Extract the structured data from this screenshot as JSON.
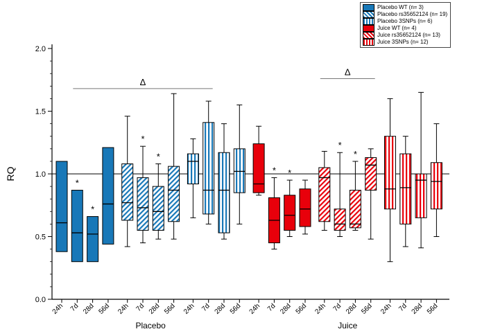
{
  "chart_data": {
    "type": "box",
    "title": "",
    "ylabel": "RQ",
    "ylim": [
      0.0,
      2.0
    ],
    "yticks": [
      "0.0",
      "0.5",
      "1.0",
      "1.5",
      "2.0"
    ],
    "y_minor_step": 0.1,
    "reference_line": 1.0,
    "significance_marker": "*",
    "timepoints": [
      "24h",
      "7d",
      "28d",
      "56d"
    ],
    "groups": [
      {
        "label": "Placebo",
        "series_indices": [
          0,
          1,
          2
        ]
      },
      {
        "label": "Juice",
        "series_indices": [
          3,
          4,
          5
        ]
      }
    ],
    "colors": {
      "placebo": "#1878B8",
      "juice": "#E8000B"
    },
    "series": [
      {
        "name": "Placebo WT (n= 3)",
        "color": "#1878B8",
        "fill": "solid",
        "boxes": [
          {
            "t": "24h",
            "lo": 0.38,
            "q1": 0.38,
            "med": 0.61,
            "q3": 1.1,
            "hi": 1.1,
            "star": false
          },
          {
            "t": "7d",
            "lo": 0.3,
            "q1": 0.3,
            "med": 0.53,
            "q3": 0.87,
            "hi": 0.87,
            "star": true
          },
          {
            "t": "28d",
            "lo": 0.3,
            "q1": 0.3,
            "med": 0.52,
            "q3": 0.66,
            "hi": 0.66,
            "star": true
          },
          {
            "t": "56d",
            "lo": 0.44,
            "q1": 0.44,
            "med": 0.76,
            "q3": 1.21,
            "hi": 1.21,
            "star": false
          }
        ]
      },
      {
        "name": "Placebo rs35652124 (n= 19)",
        "color": "#1878B8",
        "fill": "diagonal",
        "boxes": [
          {
            "t": "24h",
            "lo": 0.42,
            "q1": 0.63,
            "med": 0.77,
            "q3": 1.08,
            "hi": 1.46,
            "star": false
          },
          {
            "t": "7d",
            "lo": 0.45,
            "q1": 0.55,
            "med": 0.73,
            "q3": 0.97,
            "hi": 1.22,
            "star": true
          },
          {
            "t": "28d",
            "lo": 0.48,
            "q1": 0.55,
            "med": 0.7,
            "q3": 0.9,
            "hi": 1.08,
            "star": true
          },
          {
            "t": "56d",
            "lo": 0.48,
            "q1": 0.62,
            "med": 0.87,
            "q3": 1.06,
            "hi": 1.64,
            "star": false
          }
        ]
      },
      {
        "name": "Placebo 3SNPs (n= 6)",
        "color": "#1878B8",
        "fill": "vertical",
        "boxes": [
          {
            "t": "24h",
            "lo": 0.65,
            "q1": 0.92,
            "med": 1.1,
            "q3": 1.16,
            "hi": 1.28,
            "star": false
          },
          {
            "t": "7d",
            "lo": 0.6,
            "q1": 0.68,
            "med": 0.87,
            "q3": 1.41,
            "hi": 1.58,
            "star": false
          },
          {
            "t": "28d",
            "lo": 0.48,
            "q1": 0.53,
            "med": 0.87,
            "q3": 1.17,
            "hi": 1.4,
            "star": false
          },
          {
            "t": "56d",
            "lo": 0.6,
            "q1": 0.85,
            "med": 1.02,
            "q3": 1.2,
            "hi": 1.55,
            "star": false
          }
        ]
      },
      {
        "name": "Juice WT (n= 4)",
        "color": "#E8000B",
        "fill": "solid",
        "boxes": [
          {
            "t": "24h",
            "lo": 0.83,
            "q1": 0.85,
            "med": 0.92,
            "q3": 1.24,
            "hi": 1.38,
            "star": false
          },
          {
            "t": "7d",
            "lo": 0.4,
            "q1": 0.45,
            "med": 0.63,
            "q3": 0.81,
            "hi": 0.97,
            "star": true
          },
          {
            "t": "28d",
            "lo": 0.5,
            "q1": 0.55,
            "med": 0.67,
            "q3": 0.83,
            "hi": 0.95,
            "star": true
          },
          {
            "t": "56d",
            "lo": 0.52,
            "q1": 0.58,
            "med": 0.72,
            "q3": 0.88,
            "hi": 0.95,
            "star": false
          }
        ]
      },
      {
        "name": "Juice rs35652124 (n= 13)",
        "color": "#E8000B",
        "fill": "diagonal",
        "boxes": [
          {
            "t": "24h",
            "lo": 0.55,
            "q1": 0.62,
            "med": 0.97,
            "q3": 1.05,
            "hi": 1.18,
            "star": false
          },
          {
            "t": "7d",
            "lo": 0.5,
            "q1": 0.55,
            "med": 0.6,
            "q3": 0.72,
            "hi": 1.17,
            "star": true
          },
          {
            "t": "28d",
            "lo": 0.55,
            "q1": 0.57,
            "med": 0.6,
            "q3": 0.87,
            "hi": 1.1,
            "star": true
          },
          {
            "t": "56d",
            "lo": 0.48,
            "q1": 0.87,
            "med": 1.07,
            "q3": 1.13,
            "hi": 1.2,
            "star": false
          }
        ]
      },
      {
        "name": "Juice 3SNPs (n= 12)",
        "color": "#E8000B",
        "fill": "vertical",
        "boxes": [
          {
            "t": "24h",
            "lo": 0.3,
            "q1": 0.72,
            "med": 0.88,
            "q3": 1.3,
            "hi": 1.6,
            "star": false
          },
          {
            "t": "7d",
            "lo": 0.42,
            "q1": 0.6,
            "med": 0.89,
            "q3": 1.16,
            "hi": 1.3,
            "star": false
          },
          {
            "t": "28d",
            "lo": 0.41,
            "q1": 0.65,
            "med": 0.95,
            "q3": 1.0,
            "hi": 1.65,
            "star": false
          },
          {
            "t": "56d",
            "lo": 0.5,
            "q1": 0.72,
            "med": 0.94,
            "q3": 1.09,
            "hi": 1.4,
            "star": false
          }
        ]
      }
    ],
    "annotations": [
      {
        "label": "Δ",
        "from_box": 1,
        "to_box": 9,
        "y": 1.68
      },
      {
        "label": "Δ",
        "from_box": 16,
        "to_box": 19,
        "y": 1.76
      }
    ]
  }
}
